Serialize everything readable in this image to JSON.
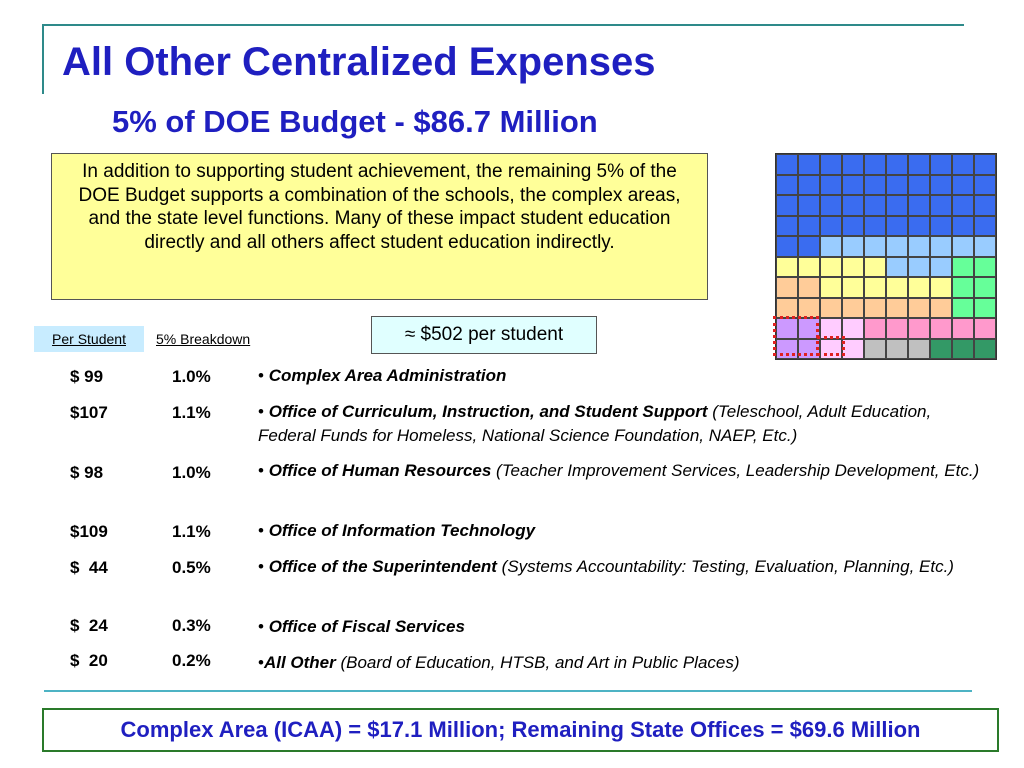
{
  "title": "All Other Centralized Expenses",
  "subtitle": "5% of DOE Budget - $86.7 Million",
  "intro": "In addition to supporting student achievement, the remaining 5% of the DOE Budget supports a combination of the schools, the complex areas, and the state level functions.  Many of these impact student education directly and all others affect student education indirectly.",
  "per_student_callout": "≈ $502 per student",
  "headers": {
    "per_student": "Per Student",
    "breakdown": "5% Breakdown"
  },
  "rows": [
    {
      "amount": "$ 99",
      "percent": "1.0%",
      "bullet": "• ",
      "name": "Complex Area Administration",
      "detail": ""
    },
    {
      "amount": "$107",
      "percent": "1.1%",
      "bullet": "• ",
      "name": "Office of Curriculum, Instruction, and Student Support",
      "detail": " (Teleschool, Adult Education, Federal Funds for Homeless, National Science Foundation, NAEP, Etc.)"
    },
    {
      "amount": "$ 98",
      "percent": "1.0%",
      "bullet": "• ",
      "name": "Office of Human Resources",
      "detail": " (Teacher Improvement Services, Leadership Development, Etc.)"
    },
    {
      "amount": "$109",
      "percent": "1.1%",
      "bullet": "• ",
      "name": "Office of Information Technology",
      "detail": ""
    },
    {
      "amount": "$  44",
      "percent": "0.5%",
      "bullet": "• ",
      "name": "Office of the Superintendent",
      "detail": " (Systems Accountability: Testing, Evaluation, Planning, Etc.)"
    },
    {
      "amount": "$  24",
      "percent": "0.3%",
      "bullet": "• ",
      "name": "Office of Fiscal Services",
      "detail": ""
    },
    {
      "amount": "$  20",
      "percent": "0.2%",
      "bullet": "•",
      "name": "All Other",
      "detail": " (Board of Education, HTSB, and Art in Public Places)"
    }
  ],
  "footer": "Complex Area (ICAA) = $17.1 Million; Remaining State Offices = $69.6 Million",
  "grid_colors": {
    "B": "#3a6cf0",
    "L": "#99ccff",
    "Y": "#ffff99",
    "O": "#ffcc99",
    "G": "#66ff99",
    "V": "#cc99ff",
    "P": "#ffccff",
    "K": "#ff99cc",
    "S": "#c0c0c0",
    "D": "#339966"
  },
  "grid_rows": [
    "BBBBBBBBBB",
    "BBBBBBBBBB",
    "BBBBBBBBBB",
    "BBBBBBBBBB",
    "BBLLLLLLLL",
    "YYYYYLLLGG",
    "OOYYYYYYGG",
    "OOOOOOOOGG",
    "VVPPKKKKKK",
    "VVPPSSSDDD"
  ]
}
